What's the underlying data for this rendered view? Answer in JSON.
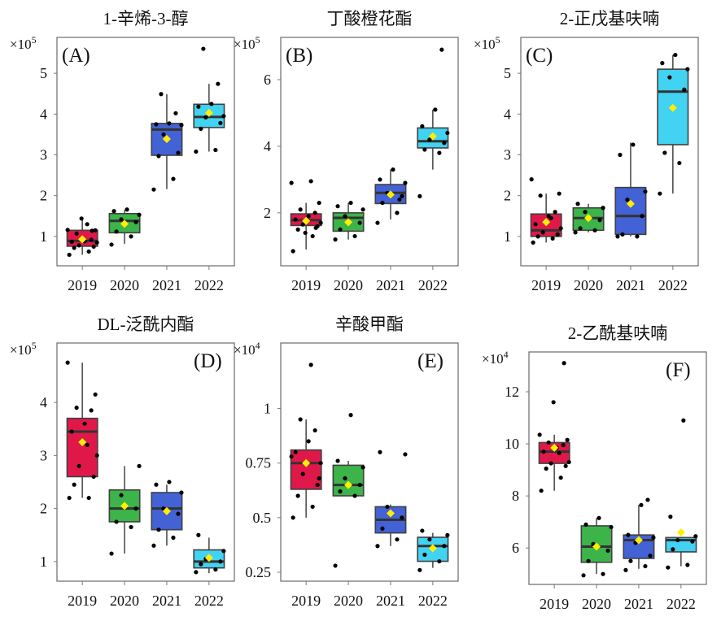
{
  "chart_data": [
    {
      "type": "box",
      "letter": "(A)",
      "title": "1-辛烯-3-醇",
      "multiplier": "×10",
      "exponent": "5",
      "categories": [
        "2019",
        "2020",
        "2021",
        "2022"
      ],
      "ylim": [
        0.28,
        5.88
      ],
      "yticks": [
        1,
        2,
        3,
        4,
        5
      ],
      "ytick_labels": [
        "1",
        "2",
        "3",
        "4",
        "5"
      ],
      "letter_pos": "top-left",
      "boxes": [
        {
          "min": 0.55,
          "q1": 0.76,
          "median": 0.89,
          "q3": 1.15,
          "max": 1.45,
          "mean": 0.93
        },
        {
          "min": 0.82,
          "q1": 1.09,
          "median": 1.38,
          "q3": 1.56,
          "max": 1.65,
          "mean": 1.31
        },
        {
          "min": 2.16,
          "q1": 2.99,
          "median": 3.62,
          "q3": 3.77,
          "max": 4.49,
          "mean": 3.39
        },
        {
          "min": 3.08,
          "q1": 3.67,
          "median": 3.93,
          "q3": 4.24,
          "max": 4.74,
          "mean": 4.03
        }
      ],
      "points": [
        [
          0.55,
          0.63,
          0.72,
          0.75,
          0.78,
          0.85,
          0.87,
          0.88,
          0.92,
          1.07,
          1.15,
          1.16,
          1.3,
          1.44,
          1.14
        ],
        [
          0.8,
          1.0,
          1.12,
          1.35,
          1.42,
          1.53,
          1.62,
          1.66
        ],
        [
          2.15,
          2.41,
          2.97,
          3.05,
          3.5,
          3.73,
          3.75,
          3.77,
          4.02,
          4.49
        ],
        [
          3.08,
          3.12,
          3.64,
          3.78,
          3.92,
          3.95,
          4.18,
          4.25,
          4.74,
          5.6
        ]
      ]
    },
    {
      "type": "box",
      "letter": "(B)",
      "title": "丁酸橙花酯",
      "multiplier": "×10",
      "exponent": "5",
      "categories": [
        "2019",
        "2020",
        "2021",
        "2022"
      ],
      "ylim": [
        0.41,
        7.27
      ],
      "yticks": [
        2,
        4,
        6
      ],
      "ytick_labels": [
        "2",
        "4",
        "6"
      ],
      "letter_pos": "top-left",
      "boxes": [
        {
          "min": 0.9,
          "q1": 1.62,
          "median": 1.78,
          "q3": 1.97,
          "max": 2.3,
          "mean": 1.76
        },
        {
          "min": 1.2,
          "q1": 1.45,
          "median": 1.85,
          "q3": 2.0,
          "max": 2.3,
          "mean": 1.72
        },
        {
          "min": 1.8,
          "q1": 2.28,
          "median": 2.6,
          "q3": 2.85,
          "max": 3.3,
          "mean": 2.55
        },
        {
          "min": 3.3,
          "q1": 3.95,
          "median": 4.15,
          "q3": 4.55,
          "max": 5.1,
          "mean": 4.3
        }
      ],
      "points": [
        [
          0.85,
          1.3,
          1.5,
          1.6,
          1.65,
          1.7,
          1.8,
          1.9,
          2.0,
          2.1,
          2.3,
          2.9,
          2.95,
          1.4,
          1.55
        ],
        [
          1.2,
          1.3,
          1.5,
          1.7,
          1.9,
          2.1,
          2.2,
          2.3
        ],
        [
          1.7,
          2.0,
          2.3,
          2.5,
          2.6,
          2.9,
          3.0,
          3.3,
          2.4
        ],
        [
          2.5,
          3.8,
          3.9,
          4.1,
          4.2,
          4.4,
          4.6,
          5.1,
          6.9
        ]
      ]
    },
    {
      "type": "box",
      "letter": "(C)",
      "title": "2-正戊基呋喃",
      "multiplier": "×10",
      "exponent": "5",
      "categories": [
        "2019",
        "2020",
        "2021",
        "2022"
      ],
      "ylim": [
        0.28,
        5.88
      ],
      "yticks": [
        1,
        2,
        3,
        4,
        5
      ],
      "ytick_labels": [
        "1",
        "2",
        "3",
        "4",
        "5"
      ],
      "letter_pos": "top-left",
      "boxes": [
        {
          "min": 0.85,
          "q1": 1.0,
          "median": 1.15,
          "q3": 1.55,
          "max": 2.05,
          "mean": 1.35
        },
        {
          "min": 1.1,
          "q1": 1.15,
          "median": 1.45,
          "q3": 1.7,
          "max": 1.8,
          "mean": 1.45
        },
        {
          "min": 1.0,
          "q1": 1.05,
          "median": 1.5,
          "q3": 2.2,
          "max": 3.3,
          "mean": 1.8
        },
        {
          "min": 2.05,
          "q1": 3.25,
          "median": 4.55,
          "q3": 5.1,
          "max": 5.45,
          "mean": 4.15
        }
      ],
      "points": [
        [
          0.85,
          0.95,
          1.0,
          1.05,
          1.1,
          1.2,
          1.3,
          1.5,
          1.6,
          2.0,
          2.05,
          2.4,
          1.45
        ],
        [
          1.1,
          1.15,
          1.2,
          1.4,
          1.6,
          1.7,
          1.8
        ],
        [
          1.0,
          1.0,
          1.05,
          1.5,
          1.9,
          2.1,
          3.0,
          3.25
        ],
        [
          2.05,
          2.8,
          3.05,
          4.6,
          4.9,
          5.1,
          5.25,
          5.45
        ]
      ]
    },
    {
      "type": "box",
      "letter": "(D)",
      "title": "DL-泛酰内酯",
      "multiplier": "×10",
      "exponent": "5",
      "categories": [
        "2019",
        "2020",
        "2021",
        "2022"
      ],
      "ylim": [
        0.63,
        5.12
      ],
      "yticks": [
        1,
        2,
        3,
        4
      ],
      "ytick_labels": [
        "1",
        "2",
        "3",
        "4"
      ],
      "letter_pos": "top-right",
      "boxes": [
        {
          "min": 2.2,
          "q1": 2.6,
          "median": 3.45,
          "q3": 3.7,
          "max": 4.75,
          "mean": 3.25
        },
        {
          "min": 1.15,
          "q1": 1.75,
          "median": 2.0,
          "q3": 2.35,
          "max": 2.8,
          "mean": 2.05
        },
        {
          "min": 1.3,
          "q1": 1.6,
          "median": 2.0,
          "q3": 2.3,
          "max": 2.45,
          "mean": 1.95
        },
        {
          "min": 0.78,
          "q1": 0.88,
          "median": 1.0,
          "q3": 1.22,
          "max": 1.45,
          "mean": 1.07
        }
      ],
      "points": [
        [
          2.2,
          2.2,
          2.45,
          2.6,
          2.8,
          3.0,
          3.45,
          3.6,
          3.85,
          3.9,
          4.15,
          4.75,
          3.2
        ],
        [
          1.15,
          1.65,
          1.75,
          2.0,
          2.25,
          2.8
        ],
        [
          1.3,
          1.45,
          1.6,
          1.9,
          2.0,
          2.3,
          2.45,
          2.5
        ],
        [
          0.8,
          0.85,
          0.95,
          1.0,
          1.05,
          1.2,
          1.5
        ]
      ]
    },
    {
      "type": "box",
      "letter": "(E)",
      "title": "辛酸甲酯",
      "multiplier": "×10",
      "exponent": "4",
      "categories": [
        "2019",
        "2020",
        "2021",
        "2022"
      ],
      "ylim": [
        0.209,
        1.3
      ],
      "yticks": [
        0.25,
        0.5,
        0.75,
        1
      ],
      "ytick_labels": [
        "0.25",
        "0.5",
        "0.75",
        "1"
      ],
      "letter_pos": "top-right",
      "boxes": [
        {
          "min": 0.5,
          "q1": 0.63,
          "median": 0.75,
          "q3": 0.81,
          "max": 0.95,
          "mean": 0.75
        },
        {
          "min": 0.6,
          "q1": 0.6,
          "median": 0.65,
          "q3": 0.74,
          "max": 0.76,
          "mean": 0.65
        },
        {
          "min": 0.37,
          "q1": 0.43,
          "median": 0.49,
          "q3": 0.55,
          "max": 0.56,
          "mean": 0.52
        },
        {
          "min": 0.27,
          "q1": 0.3,
          "median": 0.37,
          "q3": 0.41,
          "max": 0.43,
          "mean": 0.36
        }
      ],
      "points": [
        [
          0.5,
          0.55,
          0.6,
          0.65,
          0.7,
          0.75,
          0.8,
          0.85,
          0.9,
          0.95,
          0.68,
          0.78,
          1.2
        ],
        [
          0.28,
          0.6,
          0.62,
          0.65,
          0.68,
          0.73,
          0.76,
          0.97
        ],
        [
          0.37,
          0.4,
          0.45,
          0.5,
          0.55,
          0.79,
          0.8
        ],
        [
          0.26,
          0.3,
          0.33,
          0.37,
          0.4,
          0.42,
          0.44
        ]
      ]
    },
    {
      "type": "box",
      "letter": "(F)",
      "title": "2-乙酰基呋喃",
      "multiplier": "×10",
      "exponent": "4",
      "categories": [
        "2019",
        "2020",
        "2021",
        "2022"
      ],
      "ylim": [
        4.6,
        13.53
      ],
      "yticks": [
        6,
        8,
        10,
        12
      ],
      "ytick_labels": [
        "6",
        "8",
        "10",
        "12"
      ],
      "letter_pos": "top-right",
      "boxes": [
        {
          "min": 8.2,
          "q1": 9.25,
          "median": 9.7,
          "q3": 10.05,
          "max": 10.35,
          "mean": 9.85
        },
        {
          "min": 5.0,
          "q1": 5.45,
          "median": 6.05,
          "q3": 6.85,
          "max": 7.15,
          "mean": 6.05
        },
        {
          "min": 5.2,
          "q1": 5.6,
          "median": 6.3,
          "q3": 6.5,
          "max": 7.65,
          "mean": 6.3
        },
        {
          "min": 5.3,
          "q1": 5.85,
          "median": 6.3,
          "q3": 6.4,
          "max": 6.4,
          "mean": 6.6
        }
      ],
      "points": [
        [
          8.2,
          8.7,
          9.05,
          9.15,
          9.25,
          9.3,
          9.7,
          9.85,
          9.95,
          10.05,
          10.15,
          10.35,
          9.65,
          11.6,
          13.1
        ],
        [
          4.95,
          5.0,
          5.5,
          5.9,
          6.15,
          6.8,
          6.9,
          7.15
        ],
        [
          5.15,
          5.3,
          5.5,
          5.7,
          6.2,
          6.4,
          6.5,
          7.65,
          7.85
        ],
        [
          5.25,
          5.35,
          5.95,
          6.25,
          6.3,
          6.45,
          7.2,
          10.9
        ]
      ]
    }
  ],
  "colors": {
    "2019": "#e0184a",
    "2020": "#3cb44a",
    "2021": "#4262d6",
    "2022": "#42d2f2",
    "mean": "#ffee00",
    "point": "#000000",
    "box_edge": "#404040"
  }
}
